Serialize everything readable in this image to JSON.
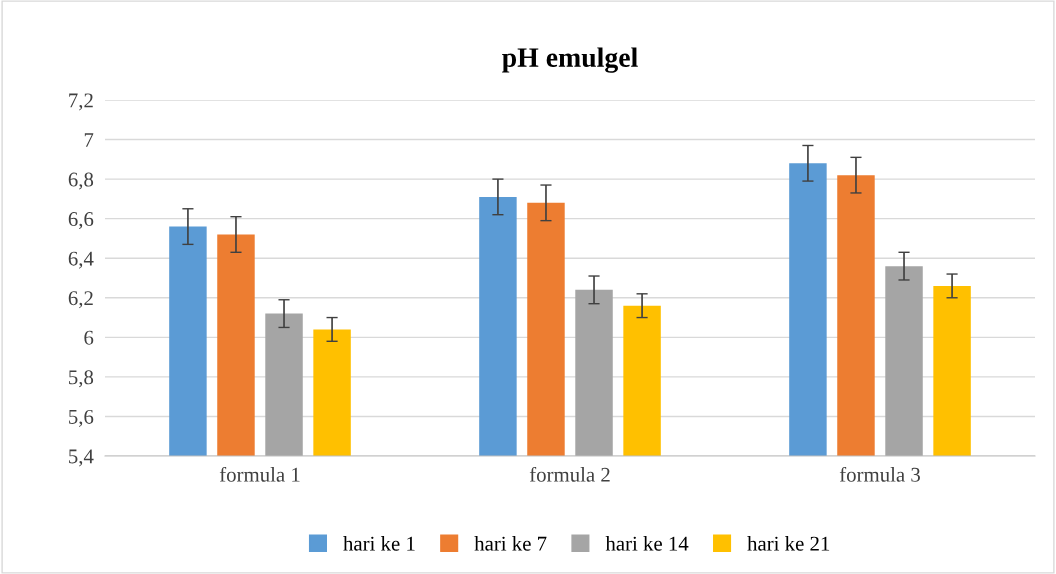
{
  "chart_data": {
    "type": "bar",
    "title": "pH emulgel",
    "categories": [
      "formula 1",
      "formula 2",
      "formula 3"
    ],
    "series": [
      {
        "name": "hari ke 1",
        "color": "#5b9bd5",
        "values": [
          6.56,
          6.71,
          6.88
        ],
        "errors": [
          0.09,
          0.09,
          0.09
        ]
      },
      {
        "name": "hari ke 7",
        "color": "#ed7d31",
        "values": [
          6.52,
          6.68,
          6.82
        ],
        "errors": [
          0.09,
          0.09,
          0.09
        ]
      },
      {
        "name": "hari ke 14",
        "color": "#a5a5a5",
        "values": [
          6.12,
          6.24,
          6.36
        ],
        "errors": [
          0.07,
          0.07,
          0.07
        ]
      },
      {
        "name": "hari ke 21",
        "color": "#ffc000",
        "values": [
          6.04,
          6.16,
          6.26
        ],
        "errors": [
          0.06,
          0.06,
          0.06
        ]
      }
    ],
    "ylim": [
      5.4,
      7.2
    ],
    "yticks": [
      {
        "value": 5.4,
        "label": "5,4"
      },
      {
        "value": 5.6,
        "label": "5,6"
      },
      {
        "value": 5.8,
        "label": "5,8"
      },
      {
        "value": 6,
        "label": "6"
      },
      {
        "value": 6.2,
        "label": "6,2"
      },
      {
        "value": 6.4,
        "label": "6,4"
      },
      {
        "value": 6.6,
        "label": "6,6"
      },
      {
        "value": 6.8,
        "label": "6,8"
      },
      {
        "value": 7,
        "label": "7"
      },
      {
        "value": 7.2,
        "label": "7,2"
      }
    ],
    "grid": "y",
    "legend": "bottom"
  }
}
